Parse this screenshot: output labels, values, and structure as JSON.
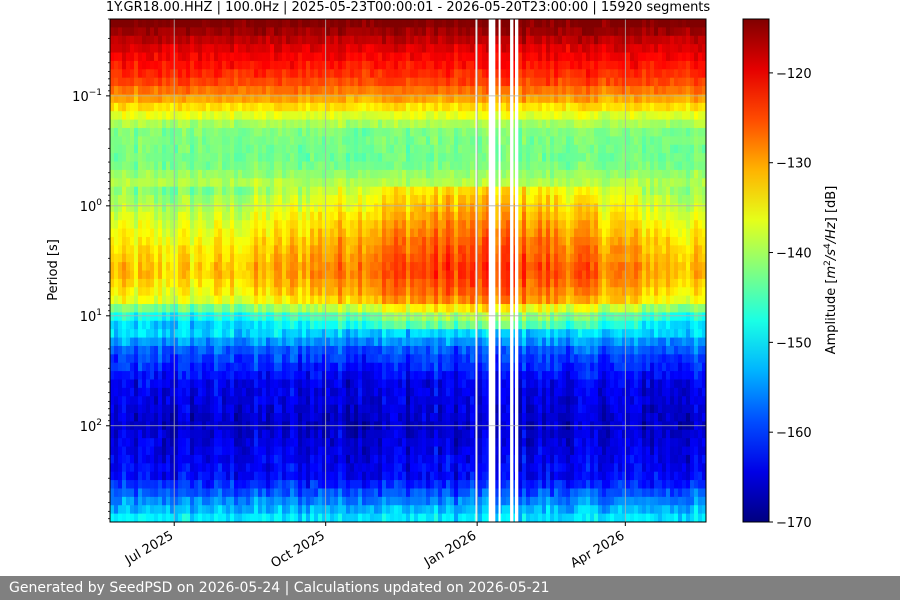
{
  "chart_data": {
    "type": "heatmap",
    "title": "1Y.GR18.00.HHZ | 100.0Hz | 2025-05-23T00:00:01 - 2026-05-20T23:00:00 | 15920 segments",
    "xlabel": "",
    "ylabel": "Period [s]",
    "x_range": [
      "2025-05-23",
      "2026-05-20"
    ],
    "x_ticks": [
      {
        "date": "2025-07-01",
        "label": "Jul 2025"
      },
      {
        "date": "2025-10-01",
        "label": "Oct 2025"
      },
      {
        "date": "2026-01-01",
        "label": "Jan 2026"
      },
      {
        "date": "2026-04-01",
        "label": "Apr 2026"
      }
    ],
    "y_scale": "log",
    "y_inverted": true,
    "y_range": [
      0.02,
      750
    ],
    "y_ticks": [
      {
        "value": 0.1,
        "base": "10",
        "exp": "−1"
      },
      {
        "value": 1,
        "base": "10",
        "exp": "0"
      },
      {
        "value": 10,
        "base": "10",
        "exp": "1"
      },
      {
        "value": 100,
        "base": "10",
        "exp": "2"
      }
    ],
    "grid": true,
    "colormap": "jet",
    "colorbar": {
      "label_parts": [
        "Amplitude [",
        "m",
        "2",
        "/s",
        "4",
        "/Hz",
        "] [dB]"
      ],
      "range": [
        -170,
        -114
      ],
      "ticks": [
        -120,
        -130,
        -140,
        -150,
        -160,
        -170
      ],
      "tick_labels": [
        "−120",
        "−130",
        "−140",
        "−150",
        "−160",
        "−170"
      ]
    },
    "data_gaps": [
      {
        "start": "2025-12-31",
        "end": "2026-01-01"
      },
      {
        "start": "2026-01-08",
        "end": "2026-01-12"
      },
      {
        "start": "2026-01-14",
        "end": "2026-01-15"
      },
      {
        "start": "2026-01-21",
        "end": "2026-01-23"
      },
      {
        "start": "2026-01-24",
        "end": "2026-01-26"
      }
    ],
    "noise_profile": [
      {
        "period": 0.02,
        "db": -113
      },
      {
        "period": 0.04,
        "db": -120
      },
      {
        "period": 0.07,
        "db": -124
      },
      {
        "period": 0.1,
        "db": -129
      },
      {
        "period": 0.2,
        "db": -142
      },
      {
        "period": 0.4,
        "db": -143
      },
      {
        "period": 0.8,
        "db": -137
      },
      {
        "period": 2,
        "db": -131
      },
      {
        "period": 4,
        "db": -128
      },
      {
        "period": 7,
        "db": -132
      },
      {
        "period": 10,
        "db": -144
      },
      {
        "period": 20,
        "db": -158
      },
      {
        "period": 40,
        "db": -164
      },
      {
        "period": 100,
        "db": -166
      },
      {
        "period": 300,
        "db": -163
      },
      {
        "period": 750,
        "db": -149
      }
    ]
  },
  "footer": {
    "text": "Generated by SeedPSD on 2026-05-24 | Calculations updated on 2026-05-21"
  }
}
